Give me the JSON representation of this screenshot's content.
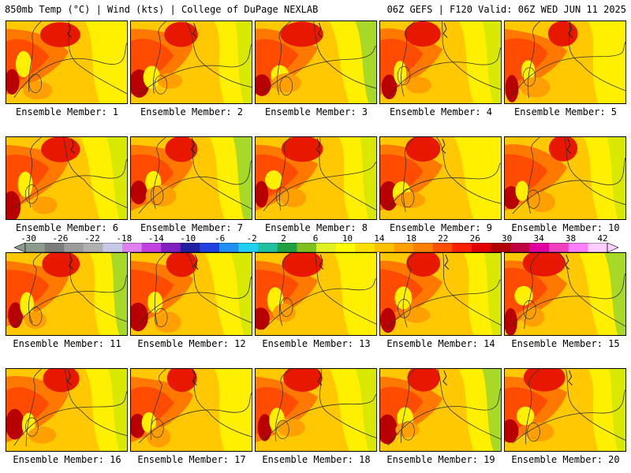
{
  "header": {
    "title_left": "850mb Temp (°C) | Wind (kts) | College of DuPage NEXLAB",
    "title_right": "06Z GEFS | F120 Valid: 06Z WED JUN 11 2025"
  },
  "panels": [
    {
      "label": "Ensemble Member: 1",
      "member": 1
    },
    {
      "label": "Ensemble Member: 2",
      "member": 2
    },
    {
      "label": "Ensemble Member: 3",
      "member": 3
    },
    {
      "label": "Ensemble Member: 4",
      "member": 4
    },
    {
      "label": "Ensemble Member: 5",
      "member": 5
    },
    {
      "label": "Ensemble Member: 6",
      "member": 6
    },
    {
      "label": "Ensemble Member: 7",
      "member": 7
    },
    {
      "label": "Ensemble Member: 8",
      "member": 8
    },
    {
      "label": "Ensemble Member: 9",
      "member": 9
    },
    {
      "label": "Ensemble Member: 10",
      "member": 10
    },
    {
      "label": "Ensemble Member: 11",
      "member": 11
    },
    {
      "label": "Ensemble Member: 12",
      "member": 12
    },
    {
      "label": "Ensemble Member: 13",
      "member": 13
    },
    {
      "label": "Ensemble Member: 14",
      "member": 14
    },
    {
      "label": "Ensemble Member: 15",
      "member": 15
    },
    {
      "label": "Ensemble Member: 16",
      "member": 16
    },
    {
      "label": "Ensemble Member: 17",
      "member": 17
    },
    {
      "label": "Ensemble Member: 18",
      "member": 18
    },
    {
      "label": "Ensemble Member: 19",
      "member": 19
    },
    {
      "label": "Ensemble Member: 20",
      "member": 20
    }
  ],
  "colorbar": {
    "ticks": [
      "-30",
      "-26",
      "-22",
      "-18",
      "-14",
      "-10",
      "-6",
      "-2",
      "2",
      "6",
      "10",
      "14",
      "18",
      "22",
      "26",
      "30",
      "34",
      "38",
      "42"
    ],
    "colors": [
      "#8c9c8c",
      "#7c7c7c",
      "#9c9c9c",
      "#b0b0b0",
      "#c8c8e8",
      "#e080f0",
      "#c040e0",
      "#8020c0",
      "#2020a0",
      "#2040e0",
      "#2090f0",
      "#20d0f0",
      "#20c0a0",
      "#20a040",
      "#80c020",
      "#e0f020",
      "#ffff00",
      "#ffe000",
      "#ffc000",
      "#ffa000",
      "#ff8000",
      "#ff5000",
      "#ff2000",
      "#e00000",
      "#b00000",
      "#c00040",
      "#e000a0",
      "#f040c0",
      "#ff80ff",
      "#ffd0ff"
    ]
  },
  "map_colors": {
    "green": "#a8d828",
    "yellow_green": "#d8e800",
    "yellow": "#fff000",
    "gold": "#ffc800",
    "orange": "#ffa000",
    "dark_orange": "#ff7800",
    "red_orange": "#ff4c00",
    "red": "#e81800",
    "dark_red": "#b80000"
  }
}
